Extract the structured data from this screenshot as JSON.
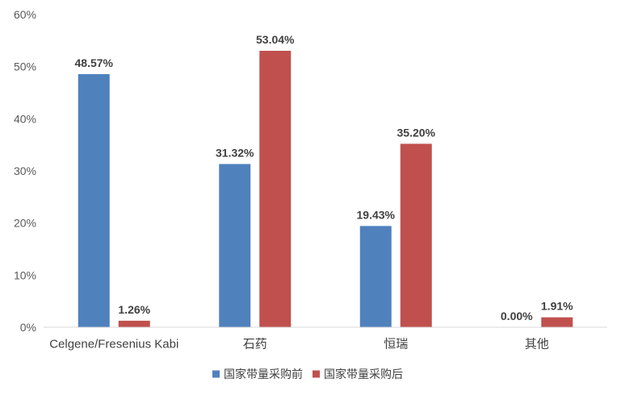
{
  "chart_data": {
    "type": "bar",
    "categories": [
      "Celgene/Fresenius Kabi",
      "石药",
      "恒瑞",
      "其他"
    ],
    "series": [
      {
        "name": "国家带量采购前",
        "color": "#4F81BD",
        "values": [
          48.57,
          31.32,
          19.43,
          0.0
        ],
        "labels": [
          "48.57%",
          "31.32%",
          "19.43%",
          "0.00%"
        ]
      },
      {
        "name": "国家带量采购后",
        "color": "#C0504D",
        "values": [
          1.26,
          53.04,
          35.2,
          1.91
        ],
        "labels": [
          "1.26%",
          "53.04%",
          "35.20%",
          "1.91%"
        ]
      }
    ],
    "ylim": [
      0,
      60
    ],
    "yticks": [
      0,
      10,
      20,
      30,
      40,
      50,
      60
    ],
    "ytick_labels": [
      "0%",
      "10%",
      "20%",
      "30%",
      "40%",
      "50%",
      "60%"
    ],
    "grid": false,
    "legend_position": "bottom"
  }
}
